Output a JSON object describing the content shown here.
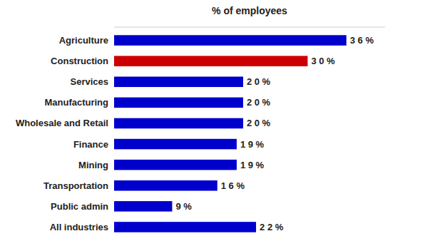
{
  "chart_data": {
    "type": "bar",
    "orientation": "horizontal",
    "xlabel": "% of employees",
    "categories": [
      "Agriculture",
      "Construction",
      "Services",
      "Manufacturing",
      "Wholesale and Retail",
      "Finance",
      "Mining",
      "Transportation",
      "Public admin",
      "All industries"
    ],
    "values": [
      36,
      30,
      20,
      20,
      20,
      19,
      19,
      16,
      9,
      22
    ],
    "value_labels": [
      "3 6 %",
      "3 0 %",
      "2 0 %",
      "2 0 %",
      "2 0 %",
      "1 9 %",
      "1 9 %",
      "1 6 %",
      "9 %",
      "2 2 %"
    ],
    "colors": [
      "#0000cc",
      "#cc0000",
      "#0000cc",
      "#0000cc",
      "#0000cc",
      "#0000cc",
      "#0000cc",
      "#0000cc",
      "#0000cc",
      "#0000cc"
    ],
    "xlim": [
      0,
      42
    ],
    "data_labels": true,
    "tick_labels": "y",
    "grid": false
  }
}
